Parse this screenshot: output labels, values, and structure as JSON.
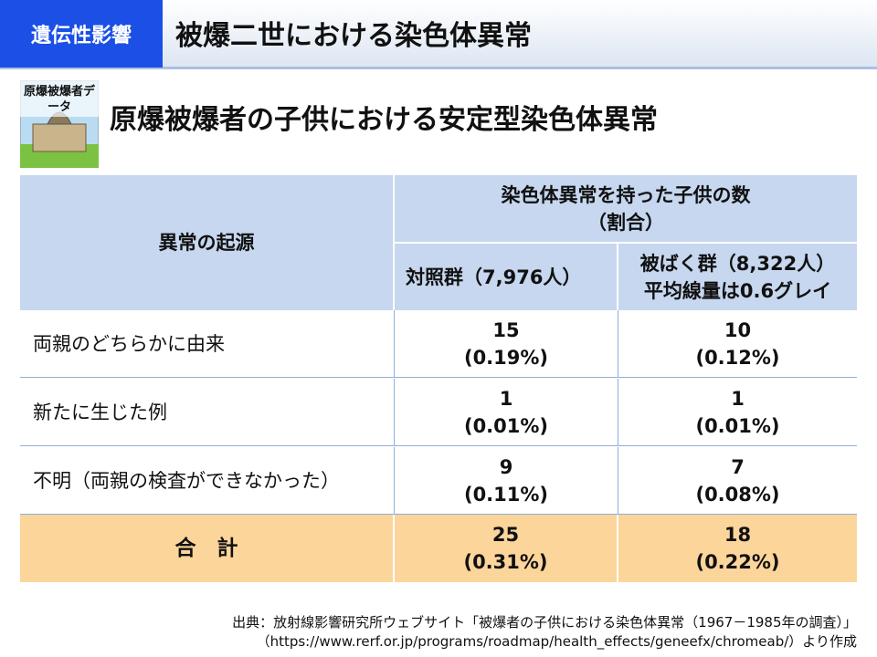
{
  "header": {
    "category": "遺伝性影響",
    "title": "被爆二世における染色体異常"
  },
  "subheader": {
    "icon_label": "原爆被爆者データ",
    "title": "原爆被爆者の子供における安定型染色体異常"
  },
  "table": {
    "header": {
      "origin": "異常の起源",
      "group": [
        "染色体異常を持った子供の数",
        "（割合）"
      ],
      "control": "対照群（7,976人）",
      "exposed": [
        "被ばく群（8,322人）",
        "平均線量は0.6グレイ"
      ]
    },
    "rows": [
      [
        "両親のどちらかに由来",
        "15",
        "(0.19%)",
        "10",
        "(0.12%)"
      ],
      [
        "新たに生じた例",
        "1",
        "(0.01%)",
        "1",
        "(0.01%)"
      ],
      [
        "不明（両親の検査ができなかった）",
        "9",
        "(0.11%)",
        "7",
        "(0.08%)"
      ]
    ],
    "total": [
      "合　計",
      "25",
      "(0.31%)",
      "18",
      "(0.22%)"
    ]
  },
  "source": [
    "出典：放射線影響研究所ウェブサイト「被爆者の子供における染色体異常（1967－1985年の調査）」",
    "（https://www.rerf.or.jp/programs/roadmap/health_effects/geneefx/chromeab/）より作成"
  ]
}
